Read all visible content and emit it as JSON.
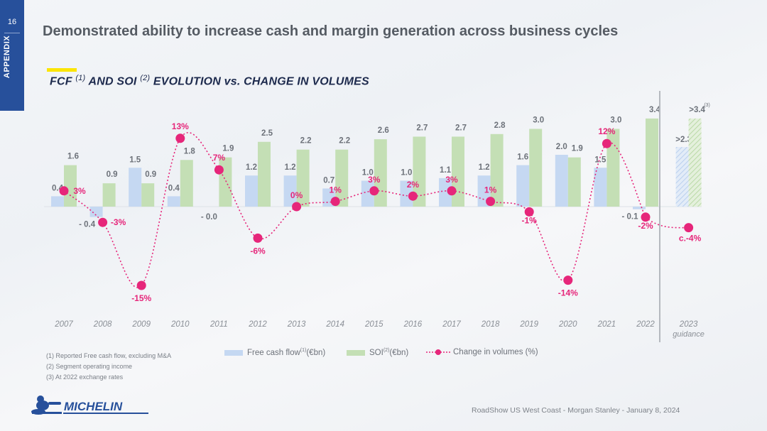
{
  "page_number": "16",
  "side_label": "APPENDIX",
  "title": "Demonstrated ability to increase cash and margin generation across business cycles",
  "subtitle": {
    "part1": "FCF",
    "sup1": "(1)",
    "part2": "AND SOI",
    "sup2": "(2)",
    "part3": "EVOLUTION vs. CHANGE IN VOLUMES"
  },
  "legend": {
    "fcf": "Free cash flow",
    "fcf_sup": "(1)",
    "fcf_unit": "(€bn)",
    "soi": "SOI",
    "soi_sup": "(2)",
    "soi_unit": "(€bn)",
    "volumes": "Change in volumes (%)"
  },
  "footnotes": [
    "(1)   Reported Free cash flow, excluding M&A",
    "(2)   Segment operating income",
    "(3)   At 2022 exchange rates"
  ],
  "footer": "RoadShow US West Coast - Morgan Stanley - January 8, 2024",
  "logo_text": "MICHELIN",
  "colors": {
    "fcf": "#c5d8f2",
    "soi": "#c4dfb5",
    "volumes": "#e6267a",
    "side_tab": "#27509b",
    "title": "#555b63",
    "subtitle": "#1d2a4d",
    "accent_yellow": "#fce500"
  },
  "chart_data": {
    "type": "bar",
    "categories": [
      "2007",
      "2008",
      "2009",
      "2010",
      "2011",
      "2012",
      "2013",
      "2014",
      "2015",
      "2016",
      "2017",
      "2018",
      "2019",
      "2020",
      "2021",
      "2022"
    ],
    "series": [
      {
        "name": "Free cash flow (€bn)",
        "values": [
          0.4,
          -0.4,
          1.5,
          0.4,
          -0.0,
          1.2,
          1.2,
          0.7,
          1.0,
          1.0,
          1.1,
          1.2,
          1.6,
          2.0,
          1.5,
          -0.1
        ],
        "labels": [
          "0.4",
          "- 0.4",
          "1.5",
          "0.4",
          "- 0.0",
          "1.2",
          "1.2",
          "0.7",
          "1.0",
          "1.0",
          "1.1",
          "1.2",
          "1.6",
          "2.0",
          "1.5",
          "- 0.1"
        ]
      },
      {
        "name": "SOI (€bn)",
        "values": [
          1.6,
          0.9,
          0.9,
          1.8,
          1.9,
          2.5,
          2.2,
          2.2,
          2.6,
          2.7,
          2.7,
          2.8,
          3.0,
          1.9,
          3.0,
          3.4
        ],
        "labels": [
          "1.6",
          "0.9",
          "0.9",
          "1.8",
          "1.9",
          "2.5",
          "2.2",
          "2.2",
          "2.6",
          "2.7",
          "2.7",
          "2.8",
          "3.0",
          "1.9",
          "3.0",
          "3.4"
        ]
      },
      {
        "name": "Change in volumes (%)",
        "type": "line",
        "values": [
          3,
          -3,
          -15,
          13,
          7,
          -6,
          0,
          1,
          3,
          2,
          3,
          1,
          -1,
          -14,
          12,
          -2
        ],
        "labels": [
          "3%",
          "-3%",
          "-15%",
          "13%",
          "7%",
          "-6%",
          "0%",
          "1%",
          "3%",
          "2%",
          "3%",
          "1%",
          "-1%",
          "-14%",
          "12%",
          "-2%"
        ]
      }
    ],
    "guidance": {
      "category": "2023",
      "sublabel": "guidance",
      "fcf_label": ">2.3",
      "fcf_value": 2.3,
      "soi_label": ">3.4",
      "soi_value": 3.4,
      "soi_note": "(3)",
      "volume_label": "c.-4%",
      "volume_value": -4
    }
  }
}
